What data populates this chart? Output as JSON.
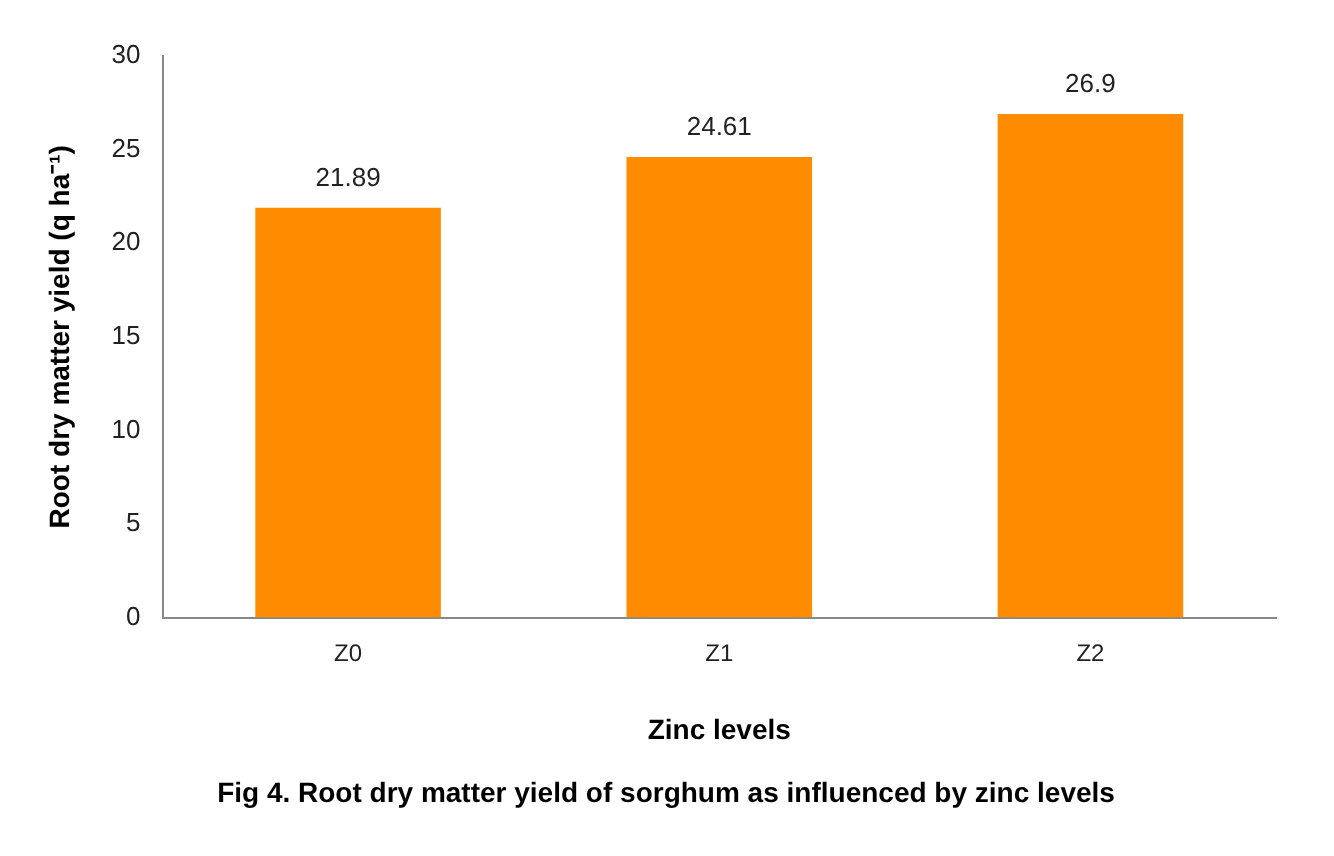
{
  "chart_data": {
    "type": "bar",
    "categories": [
      "Z0",
      "Z1",
      "Z2"
    ],
    "values": [
      21.89,
      24.61,
      26.9
    ],
    "color": "#ff8c00",
    "xlabel": "Zinc levels",
    "ylabel": "Root dry matter yield (q ha⁻¹)",
    "ylim": [
      0,
      30
    ],
    "yticks": [
      0,
      5,
      10,
      15,
      20,
      25,
      30
    ],
    "grid": false,
    "legend": false,
    "data_labels": true,
    "annotations": [
      "Fig  4. Root dry matter yield of sorghum as influenced by zinc levels"
    ]
  }
}
